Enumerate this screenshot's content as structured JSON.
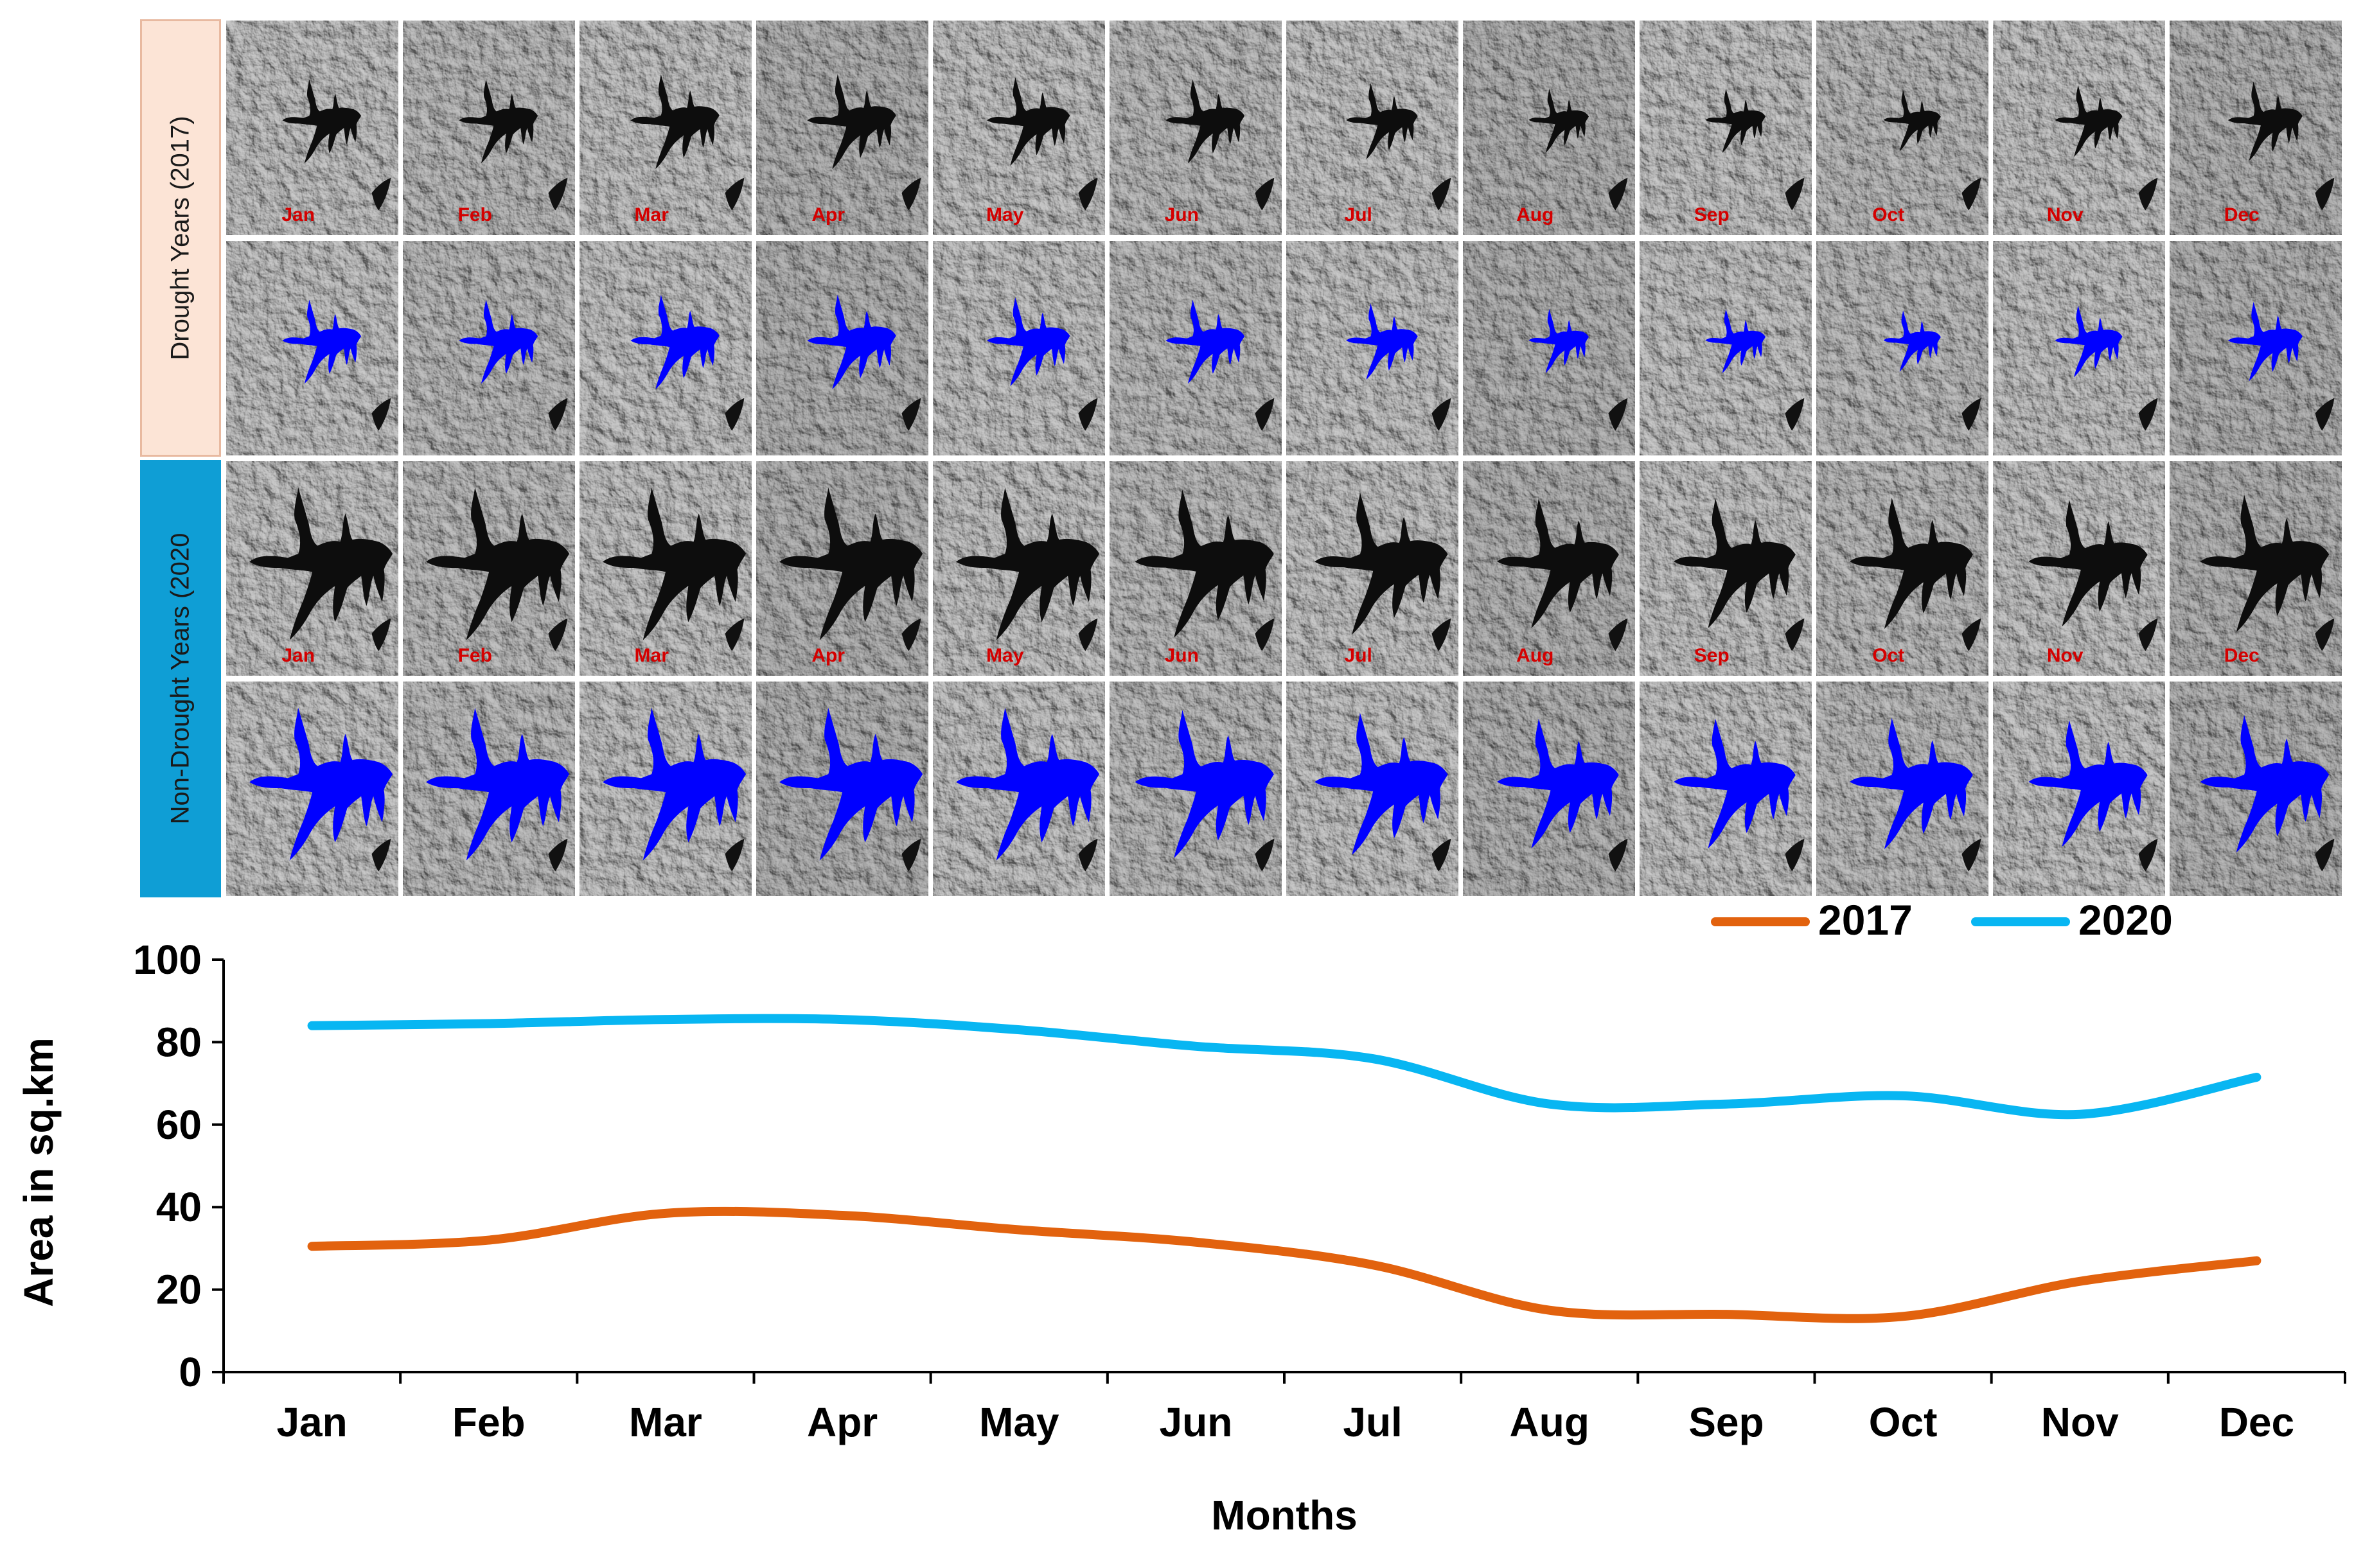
{
  "colors": {
    "drought_label_bg": "#fce4d6",
    "drought_label_border": "#e8b9a0",
    "nondrought_label_bg": "#0f9ed5",
    "water_dark": "#0d0d0d",
    "water_blue": "#0000ff",
    "month_label": "#d40000",
    "series_2017": "#e2620e",
    "series_2020": "#08b6f2",
    "axis": "#000000"
  },
  "image_panel": {
    "months": [
      "Jan",
      "Feb",
      "Mar",
      "Apr",
      "May",
      "Jun",
      "Jul",
      "Aug",
      "Sep",
      "Oct",
      "Nov",
      "Dec"
    ],
    "groups": [
      {
        "label": "Drought Years (2017)"
      },
      {
        "label": "Non-Drought Years (2020"
      }
    ],
    "rows": [
      {
        "group": 0,
        "style": "dark",
        "show_month_labels": true
      },
      {
        "group": 0,
        "style": "blue",
        "show_month_labels": false
      },
      {
        "group": 1,
        "style": "dark",
        "show_month_labels": true
      },
      {
        "group": 1,
        "style": "blue",
        "show_month_labels": false
      }
    ],
    "water_extent_by_row": [
      [
        0.55,
        0.55,
        0.62,
        0.62,
        0.58,
        0.55,
        0.5,
        0.42,
        0.42,
        0.4,
        0.47,
        0.52
      ],
      [
        0.55,
        0.55,
        0.62,
        0.62,
        0.58,
        0.55,
        0.5,
        0.42,
        0.42,
        0.4,
        0.47,
        0.52
      ],
      [
        1.0,
        1.0,
        1.0,
        1.0,
        1.0,
        0.97,
        0.93,
        0.85,
        0.85,
        0.86,
        0.83,
        0.9
      ],
      [
        1.0,
        1.0,
        1.0,
        1.0,
        1.0,
        0.97,
        0.93,
        0.85,
        0.85,
        0.86,
        0.83,
        0.9
      ]
    ]
  },
  "chart_data": {
    "type": "line",
    "categories": [
      "Jan",
      "Feb",
      "Mar",
      "Apr",
      "May",
      "Jun",
      "Jul",
      "Aug",
      "Sep",
      "Oct",
      "Nov",
      "Dec"
    ],
    "series": [
      {
        "name": "2017",
        "color": "#e2620e",
        "values": [
          30.5,
          32,
          38.5,
          38,
          34.5,
          31.5,
          26,
          15,
          14,
          13.5,
          22,
          27
        ]
      },
      {
        "name": "2020",
        "color": "#08b6f2",
        "values": [
          84,
          84.5,
          85.5,
          85.5,
          83,
          79,
          76,
          65,
          65,
          67,
          62.5,
          71.5
        ]
      }
    ],
    "xlabel": "Months",
    "ylabel": "Area in sq.km",
    "ylim": [
      0,
      100
    ],
    "yticks": [
      0,
      20,
      40,
      60,
      80,
      100
    ],
    "legend_position": "top-right",
    "grid": false
  }
}
